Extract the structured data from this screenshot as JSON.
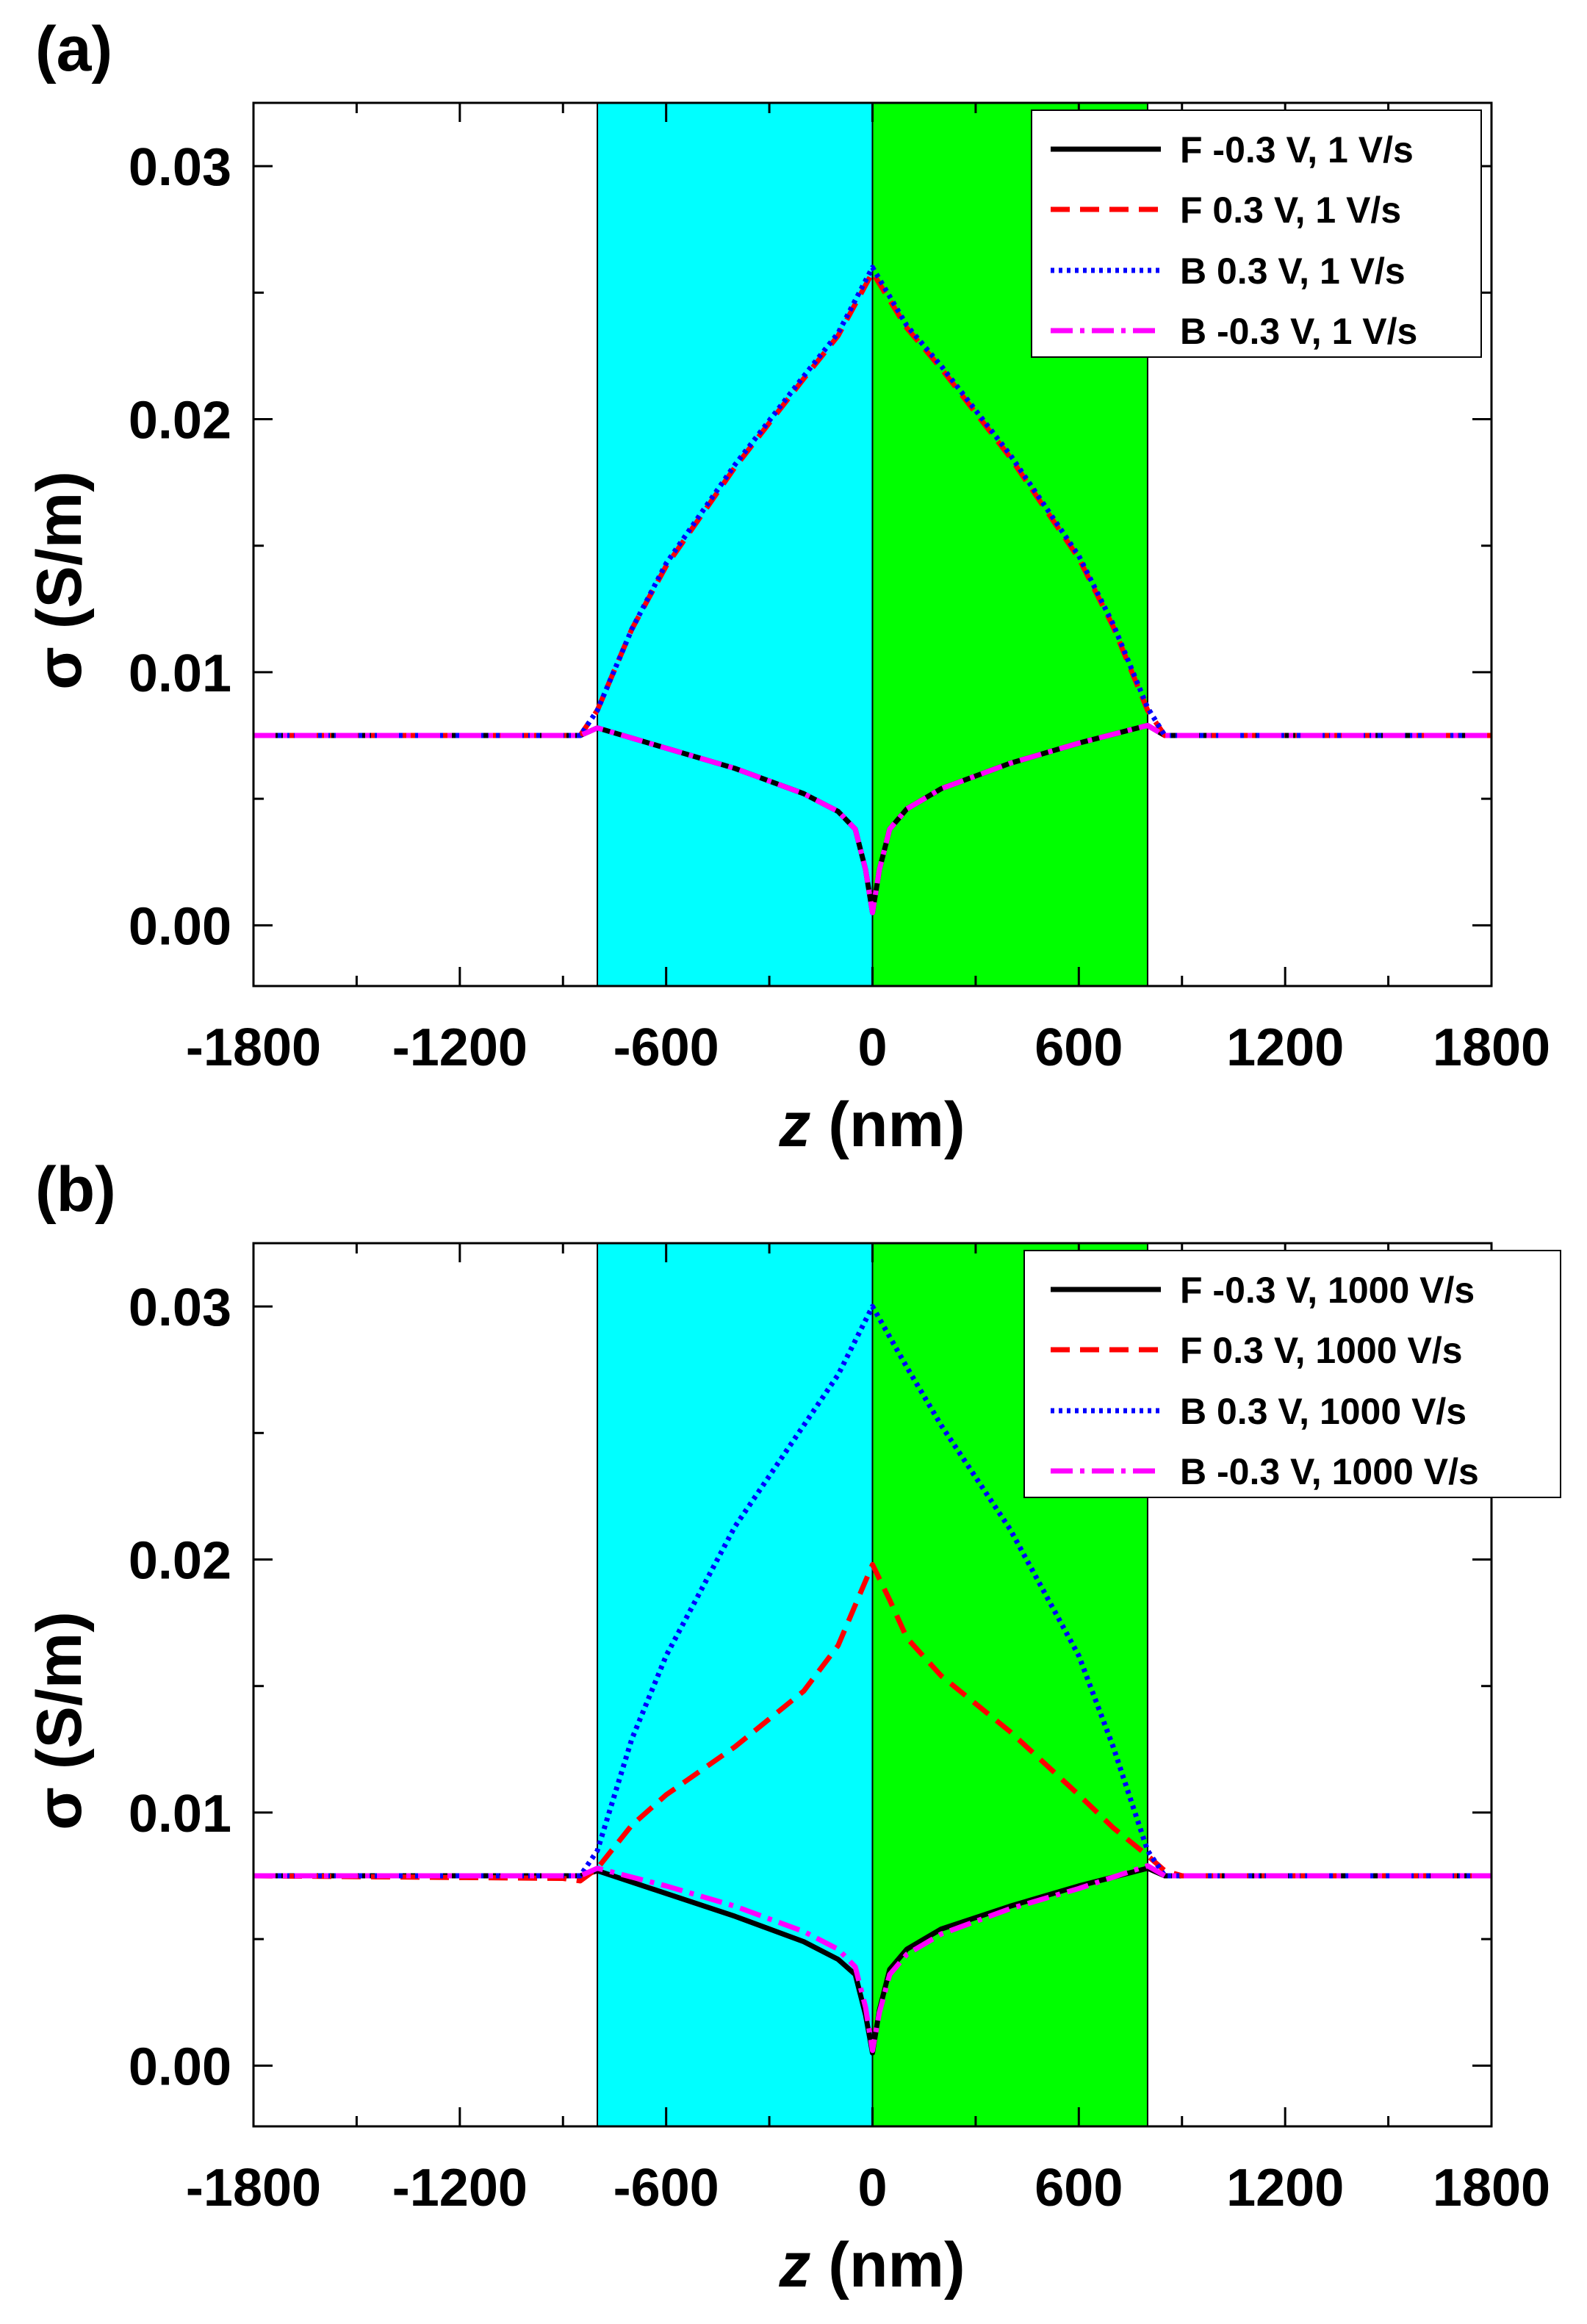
{
  "figure": {
    "panels": [
      {
        "panel_label": "(a)",
        "xlabel_italic": "z",
        "xlabel_rest": " (nm)",
        "ylabel": "σ (S/m)",
        "legend": [
          {
            "label": "F -0.3 V, 1 V/s",
            "style": "solid",
            "color": "#000000"
          },
          {
            "label": "F 0.3 V, 1 V/s",
            "style": "dashed",
            "color": "#ff0000"
          },
          {
            "label": "B 0.3 V, 1 V/s",
            "style": "dotted",
            "color": "#0000ff"
          },
          {
            "label": "B -0.3 V, 1 V/s",
            "style": "dashdot",
            "color": "#ff00ff"
          }
        ],
        "xticks": [
          "-1800",
          "-1200",
          "-600",
          "0",
          "600",
          "1200",
          "1800"
        ],
        "yticks": [
          "0.00",
          "0.01",
          "0.02",
          "0.03"
        ]
      },
      {
        "panel_label": "(b)",
        "xlabel_italic": "z",
        "xlabel_rest": " (nm)",
        "ylabel": "σ (S/m)",
        "legend": [
          {
            "label": "F -0.3 V, 1000 V/s",
            "style": "solid",
            "color": "#000000"
          },
          {
            "label": "F 0.3 V, 1000 V/s",
            "style": "dashed",
            "color": "#ff0000"
          },
          {
            "label": "B 0.3 V, 1000 V/s",
            "style": "dotted",
            "color": "#0000ff"
          },
          {
            "label": "B -0.3 V, 1000 V/s",
            "style": "dashdot",
            "color": "#ff00ff"
          }
        ],
        "xticks": [
          "-1800",
          "-1200",
          "-600",
          "0",
          "600",
          "1200",
          "1800"
        ],
        "yticks": [
          "0.00",
          "0.01",
          "0.02",
          "0.03"
        ]
      }
    ]
  },
  "chart_data": [
    {
      "type": "line",
      "title": "(a)",
      "xlabel": "z (nm)",
      "ylabel": "σ (S/m)",
      "xlim": [
        -1800,
        1800
      ],
      "ylim": [
        -0.0024,
        0.0325
      ],
      "xticks": [
        -1800,
        -1200,
        -600,
        0,
        600,
        1200,
        1800
      ],
      "yticks": [
        0.0,
        0.01,
        0.02,
        0.03
      ],
      "minor_xticks": [
        -1500,
        -900,
        -300,
        300,
        900,
        1500
      ],
      "minor_yticks": [
        0.005,
        0.015,
        0.025
      ],
      "legend_position": "top-right",
      "shaded_regions": [
        {
          "x": [
            -800,
            0
          ],
          "color": "#00ffff"
        },
        {
          "x": [
            0,
            800
          ],
          "color": "#00ff00"
        }
      ],
      "series": [
        {
          "name": "F -0.3 V, 1 V/s",
          "color": "#000000",
          "style": "solid",
          "x": [
            -1800,
            -850,
            -800,
            -600,
            -400,
            -200,
            -100,
            -50,
            -20,
            0,
            20,
            50,
            100,
            200,
            400,
            600,
            800,
            850,
            1800
          ],
          "y": [
            0.0075,
            0.0075,
            0.0078,
            0.007,
            0.0062,
            0.0052,
            0.0045,
            0.0038,
            0.0022,
            0.0005,
            0.0022,
            0.0038,
            0.0046,
            0.0054,
            0.0064,
            0.0072,
            0.0079,
            0.0075,
            0.0075
          ]
        },
        {
          "name": "F 0.3 V, 1 V/s",
          "color": "#ff0000",
          "style": "dashed",
          "x": [
            -1800,
            -850,
            -800,
            -700,
            -600,
            -400,
            -200,
            -100,
            0,
            100,
            200,
            400,
            600,
            700,
            800,
            850,
            1800
          ],
          "y": [
            0.0075,
            0.0075,
            0.0085,
            0.0117,
            0.0142,
            0.0181,
            0.0216,
            0.0233,
            0.0258,
            0.0236,
            0.022,
            0.0185,
            0.0145,
            0.0118,
            0.0085,
            0.0075,
            0.0075
          ]
        },
        {
          "name": "B 0.3 V, 1 V/s",
          "color": "#0000ff",
          "style": "dotted",
          "x": [
            -1800,
            -850,
            -800,
            -700,
            -600,
            -400,
            -200,
            -100,
            0,
            100,
            200,
            400,
            600,
            700,
            800,
            850,
            1800
          ],
          "y": [
            0.0075,
            0.0075,
            0.0085,
            0.0117,
            0.0143,
            0.0182,
            0.0217,
            0.0234,
            0.026,
            0.0237,
            0.0221,
            0.0186,
            0.0146,
            0.0119,
            0.0086,
            0.0075,
            0.0075
          ]
        },
        {
          "name": "B -0.3 V, 1 V/s",
          "color": "#ff00ff",
          "style": "dashdot",
          "x": [
            -1800,
            -850,
            -800,
            -600,
            -400,
            -200,
            -100,
            -50,
            -20,
            0,
            20,
            50,
            100,
            200,
            400,
            600,
            800,
            850,
            1800
          ],
          "y": [
            0.0075,
            0.0075,
            0.0078,
            0.007,
            0.0062,
            0.0052,
            0.0045,
            0.0038,
            0.0022,
            0.0005,
            0.0022,
            0.0038,
            0.0046,
            0.0054,
            0.0064,
            0.0072,
            0.0079,
            0.0075,
            0.0075
          ]
        }
      ]
    },
    {
      "type": "line",
      "title": "(b)",
      "xlabel": "z (nm)",
      "ylabel": "σ (S/m)",
      "xlim": [
        -1800,
        1800
      ],
      "ylim": [
        -0.0024,
        0.0325
      ],
      "xticks": [
        -1800,
        -1200,
        -600,
        0,
        600,
        1200,
        1800
      ],
      "yticks": [
        0.0,
        0.01,
        0.02,
        0.03
      ],
      "minor_xticks": [
        -1500,
        -900,
        -300,
        300,
        900,
        1500
      ],
      "minor_yticks": [
        0.005,
        0.015,
        0.025
      ],
      "legend_position": "top-right",
      "shaded_regions": [
        {
          "x": [
            -800,
            0
          ],
          "color": "#00ffff"
        },
        {
          "x": [
            0,
            800
          ],
          "color": "#00ff00"
        }
      ],
      "series": [
        {
          "name": "F -0.3 V, 1000 V/s",
          "color": "#000000",
          "style": "solid",
          "x": [
            -1800,
            -850,
            -800,
            -600,
            -400,
            -200,
            -100,
            -50,
            -20,
            0,
            20,
            50,
            100,
            200,
            400,
            600,
            800,
            850,
            1800
          ],
          "y": [
            0.0075,
            0.0075,
            0.0077,
            0.0068,
            0.0059,
            0.0049,
            0.0042,
            0.0036,
            0.002,
            0.0005,
            0.0022,
            0.0038,
            0.0046,
            0.0054,
            0.0063,
            0.0071,
            0.0078,
            0.0075,
            0.0075
          ]
        },
        {
          "name": "F 0.3 V, 1000 V/s",
          "color": "#ff0000",
          "style": "dashed",
          "x": [
            -1800,
            -900,
            -850,
            -800,
            -700,
            -600,
            -400,
            -200,
            -100,
            0,
            50,
            100,
            200,
            400,
            600,
            700,
            800,
            850,
            900,
            1800
          ],
          "y": [
            0.0075,
            0.0074,
            0.0073,
            0.0078,
            0.0095,
            0.0107,
            0.0126,
            0.0148,
            0.0166,
            0.0198,
            0.0184,
            0.0169,
            0.0154,
            0.0132,
            0.0107,
            0.0094,
            0.0083,
            0.0077,
            0.0075,
            0.0075
          ]
        },
        {
          "name": "B 0.3 V, 1000 V/s",
          "color": "#0000ff",
          "style": "dotted",
          "x": [
            -1800,
            -850,
            -800,
            -700,
            -600,
            -400,
            -200,
            -100,
            0,
            100,
            200,
            400,
            600,
            700,
            800,
            850,
            1800
          ],
          "y": [
            0.0075,
            0.0075,
            0.0085,
            0.0129,
            0.0162,
            0.0213,
            0.0253,
            0.0273,
            0.03,
            0.0276,
            0.0253,
            0.0212,
            0.0162,
            0.0126,
            0.0085,
            0.0075,
            0.0075
          ]
        },
        {
          "name": "B -0.3 V, 1000 V/s",
          "color": "#ff00ff",
          "style": "dashdot",
          "x": [
            -1800,
            -850,
            -800,
            -600,
            -400,
            -200,
            -100,
            -50,
            -20,
            0,
            20,
            50,
            100,
            200,
            400,
            600,
            800,
            850,
            1800
          ],
          "y": [
            0.0075,
            0.0075,
            0.0078,
            0.0071,
            0.0063,
            0.0053,
            0.0046,
            0.0039,
            0.0023,
            0.0006,
            0.0021,
            0.0036,
            0.0044,
            0.0052,
            0.0062,
            0.007,
            0.0079,
            0.0075,
            0.0075
          ]
        }
      ]
    }
  ]
}
